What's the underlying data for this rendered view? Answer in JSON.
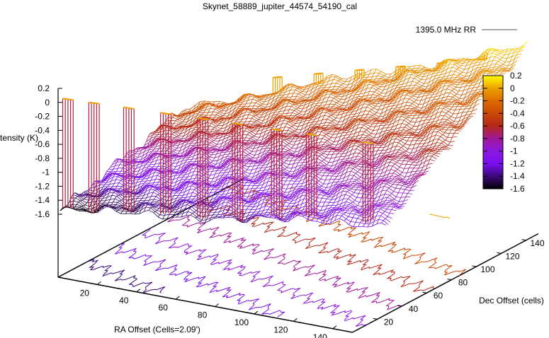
{
  "chart_data": {
    "type": "surface3d",
    "title": "Skynet_58889_jupiter_44574_54190_cal",
    "legend": {
      "label": "1395.0 MHz RR",
      "placement": "top-right",
      "color": "#555555"
    },
    "xlabel": "RA Offset (Cells=2.09')",
    "ylabel": "Dec Offset (cells)",
    "zlabel": "Intensity (K)",
    "xlim": [
      0,
      150
    ],
    "ylim": [
      0,
      150
    ],
    "zlim": [
      -1.6,
      0.2
    ],
    "xticks": [
      "20",
      "40",
      "60",
      "80",
      "100",
      "120",
      "140"
    ],
    "xtick_values": [
      20,
      40,
      60,
      80,
      100,
      120,
      140
    ],
    "yticks": [
      "20",
      "40",
      "60",
      "80",
      "100",
      "120",
      "140"
    ],
    "ytick_values": [
      20,
      40,
      60,
      80,
      100,
      120,
      140
    ],
    "zticks": [
      "0.2",
      "0",
      "-0.2",
      "-0.4",
      "-0.6",
      "-0.8",
      "-1",
      "-1.2",
      "-1.4",
      "-1.6"
    ],
    "ztick_values": [
      0.2,
      0,
      -0.2,
      -0.4,
      -0.6,
      -0.8,
      -1,
      -1.2,
      -1.4,
      -1.6
    ],
    "colorbar": {
      "range": [
        -1.6,
        0.2
      ],
      "ticks": [
        "0.2",
        "0",
        "-0.2",
        "-0.4",
        "-0.6",
        "-0.8",
        "-1",
        "-1.2",
        "-1.4",
        "-1.6"
      ],
      "palette": [
        {
          "z": -1.6,
          "color": "#000000"
        },
        {
          "z": -1.4,
          "color": "#3c0a78"
        },
        {
          "z": -1.2,
          "color": "#7a10f0"
        },
        {
          "z": -1.0,
          "color": "#8c18e0"
        },
        {
          "z": -0.8,
          "color": "#a01898"
        },
        {
          "z": -0.6,
          "color": "#b42818"
        },
        {
          "z": -0.4,
          "color": "#c84808"
        },
        {
          "z": -0.2,
          "color": "#dc6c00"
        },
        {
          "z": 0.0,
          "color": "#eea000"
        },
        {
          "z": 0.2,
          "color": "#ffff00"
        }
      ]
    },
    "surface_corners_z": {
      "ra0_dec0": -1.6,
      "ra150_dec0": -1.1,
      "ra150_dec150": 0.1,
      "ra0_dec150": -0.3
    },
    "contour_levels": [
      -1.4,
      -1.2,
      -1.0,
      -0.8,
      -0.6,
      -0.4,
      -0.2,
      0.0
    ],
    "spikes_front": [
      0,
      12,
      28,
      45,
      62,
      78,
      96,
      112,
      138
    ],
    "spikes_back": [
      40,
      58,
      76,
      94,
      112,
      130
    ],
    "spike_peak_z": 0.0
  }
}
